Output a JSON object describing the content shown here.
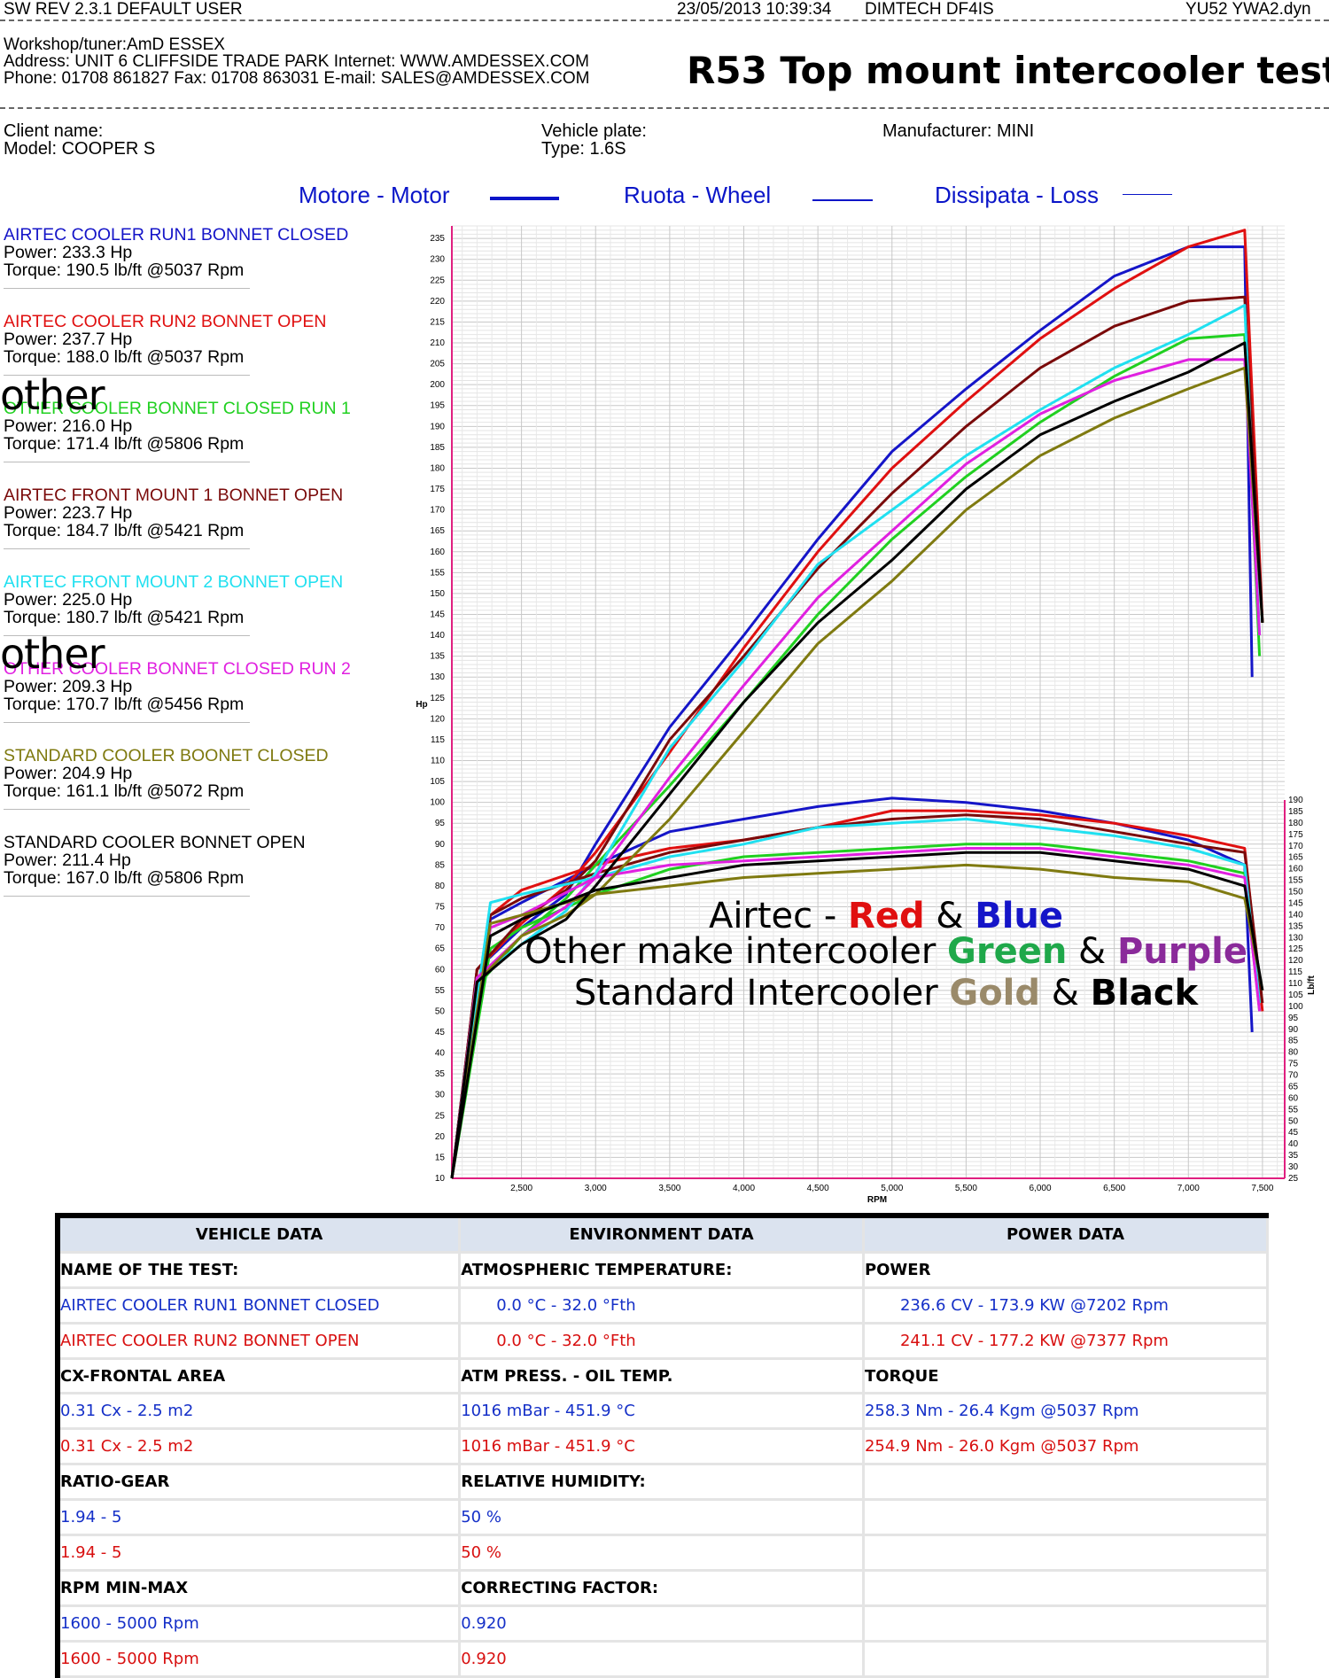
{
  "header": {
    "sw": "SW REV 2.3.1   DEFAULT USER",
    "datetime": "23/05/2013 10:39:34",
    "device": "DIMTECH DF4IS",
    "file": "YU52 YWA2.dyn"
  },
  "workshop": {
    "line1": "Workshop/tuner:AmD ESSEX",
    "line2": "Address: UNIT 6 CLIFFSIDE TRADE PARK Internet: WWW.AMDESSEX.COM",
    "line3": "Phone: 01708 861827 Fax: 01708 863031 E-mail: SALES@AMDESSEX.COM"
  },
  "page_title": "R53 Top mount intercooler test",
  "client": {
    "client_name": "Client name:",
    "model": "Model: COOPER S",
    "vehicle_plate": "Vehicle plate:",
    "type": "Type: 1.6S",
    "manufacturer": "Manufacturer: MINI"
  },
  "legend_types": [
    "Motore - Motor",
    "Ruota - Wheel",
    "Dissipata - Loss"
  ],
  "runs": [
    {
      "name": "AIRTEC COOLER RUN1 BONNET CLOSED",
      "power": "Power: 233.3 Hp",
      "torque": "Torque: 190.5 lb/ft @5037 Rpm",
      "color": "#1515c8"
    },
    {
      "name": "AIRTEC COOLER RUN2 BONNET OPEN",
      "power": "Power: 237.7 Hp",
      "torque": "Torque: 188.0 lb/ft @5037 Rpm",
      "color": "#e01010"
    },
    {
      "name": "OTHER COOLER BONNET CLOSED RUN 1",
      "power": "Power: 216.0 Hp",
      "torque": "Torque: 171.4 lb/ft @5806 Rpm",
      "color": "#20d020"
    },
    {
      "name": "AIRTEC FRONT MOUNT 1 BONNET OPEN",
      "power": "Power: 223.7 Hp",
      "torque": "Torque: 184.7 lb/ft @5421 Rpm",
      "color": "#7a0a0a"
    },
    {
      "name": "AIRTEC FRONT MOUNT 2 BONNET OPEN",
      "power": "Power: 225.0 Hp",
      "torque": "Torque: 180.7 lb/ft @5421 Rpm",
      "color": "#20e0f0"
    },
    {
      "name": "OTHER COOLER BONNET CLOSED RUN 2",
      "power": "Power: 209.3 Hp",
      "torque": "Torque: 170.7 lb/ft @5456 Rpm",
      "color": "#e020e0"
    },
    {
      "name": "STANDARD COOLER BOONET CLOSED",
      "power": "Power: 204.9 Hp",
      "torque": "Torque: 161.1 lb/ft @5072 Rpm",
      "color": "#7f7a10"
    },
    {
      "name": "STANDARD COOLER BONNET OPEN",
      "power": "Power: 211.4 Hp",
      "torque": "Torque: 167.0 lb/ft @5806 Rpm",
      "color": "#000000"
    }
  ],
  "other_overlay": "other",
  "annotation": {
    "l1a": "Airtec - ",
    "l1b": "Red",
    "l1c": " & ",
    "l1d": "Blue",
    "l2a": "Other make intercooler ",
    "l2b": "Green",
    "l2c": " & ",
    "l2d": "Purple",
    "l3a": "Standard Intercooler ",
    "l3b": "Gold",
    "l3c": " & ",
    "l3d": "Black"
  },
  "chart_data": {
    "type": "line",
    "xlabel": "RPM",
    "ylabel": "Hp",
    "y2label": "Lb/ft",
    "xlim": [
      2030,
      7650
    ],
    "ylim": [
      10,
      238
    ],
    "y2lim": [
      25,
      190
    ],
    "xticks": [
      2500,
      3000,
      3500,
      4000,
      4500,
      5000,
      5500,
      6000,
      6500,
      7000,
      7500
    ],
    "xtick_labels": [
      "2,500",
      "3,000",
      "3,500",
      "4,000",
      "4,500",
      "5,000",
      "5,500",
      "6,000",
      "6,500",
      "7,000",
      "7,500"
    ],
    "yticks": [
      10,
      15,
      20,
      25,
      30,
      35,
      40,
      45,
      50,
      55,
      60,
      65,
      70,
      75,
      80,
      85,
      90,
      95,
      100,
      105,
      110,
      115,
      120,
      125,
      130,
      135,
      140,
      145,
      150,
      155,
      160,
      165,
      170,
      175,
      180,
      185,
      190,
      195,
      200,
      205,
      210,
      215,
      220,
      225,
      230,
      235
    ],
    "y2ticks": [
      25,
      30,
      35,
      40,
      45,
      50,
      55,
      60,
      65,
      70,
      75,
      80,
      85,
      90,
      95,
      100,
      105,
      110,
      115,
      120,
      125,
      130,
      135,
      140,
      145,
      150,
      155,
      160,
      165,
      170,
      175,
      180,
      185,
      190
    ],
    "grid": true,
    "series": [
      {
        "name": "AIRTEC COOLER RUN1 BONNET CLOSED",
        "color": "#1515c8",
        "power": [
          [
            2030,
            10
          ],
          [
            2200,
            60
          ],
          [
            2500,
            70
          ],
          [
            2800,
            78
          ],
          [
            3000,
            90
          ],
          [
            3500,
            118
          ],
          [
            4000,
            140
          ],
          [
            4500,
            163
          ],
          [
            5000,
            184
          ],
          [
            5500,
            199
          ],
          [
            6000,
            213
          ],
          [
            6500,
            226
          ],
          [
            7000,
            233
          ],
          [
            7380,
            233
          ],
          [
            7430,
            130
          ]
        ],
        "torque": [
          [
            2030,
            10
          ],
          [
            2290,
            72
          ],
          [
            2500,
            76
          ],
          [
            3000,
            85
          ],
          [
            3500,
            93
          ],
          [
            4000,
            96
          ],
          [
            4500,
            99
          ],
          [
            5000,
            101
          ],
          [
            5500,
            100
          ],
          [
            6000,
            98
          ],
          [
            6500,
            95
          ],
          [
            7000,
            91
          ],
          [
            7380,
            85
          ],
          [
            7430,
            45
          ]
        ]
      },
      {
        "name": "AIRTEC COOLER RUN2 BONNET OPEN",
        "color": "#e01010",
        "power": [
          [
            2030,
            10
          ],
          [
            2200,
            60
          ],
          [
            2500,
            71
          ],
          [
            2800,
            80
          ],
          [
            3000,
            88
          ],
          [
            3500,
            112
          ],
          [
            4000,
            137
          ],
          [
            4500,
            160
          ],
          [
            5000,
            180
          ],
          [
            5500,
            196
          ],
          [
            6000,
            211
          ],
          [
            6500,
            223
          ],
          [
            7000,
            233
          ],
          [
            7380,
            237
          ],
          [
            7500,
            143
          ]
        ],
        "torque": [
          [
            2030,
            10
          ],
          [
            2290,
            73
          ],
          [
            2500,
            79
          ],
          [
            3000,
            85
          ],
          [
            3500,
            89
          ],
          [
            4000,
            91
          ],
          [
            4500,
            94
          ],
          [
            5000,
            98
          ],
          [
            5500,
            98
          ],
          [
            6000,
            97
          ],
          [
            6500,
            95
          ],
          [
            7000,
            92
          ],
          [
            7380,
            89
          ],
          [
            7500,
            50
          ]
        ]
      },
      {
        "name": "OTHER COOLER BONNET CLOSED RUN 1",
        "color": "#20d020",
        "power": [
          [
            2030,
            10
          ],
          [
            2200,
            56
          ],
          [
            2500,
            68
          ],
          [
            2800,
            77
          ],
          [
            3000,
            85
          ],
          [
            3500,
            104
          ],
          [
            4000,
            124
          ],
          [
            4500,
            145
          ],
          [
            5000,
            163
          ],
          [
            5500,
            178
          ],
          [
            6000,
            191
          ],
          [
            6500,
            202
          ],
          [
            7000,
            211
          ],
          [
            7380,
            212
          ],
          [
            7480,
            135
          ]
        ],
        "torque": [
          [
            2030,
            10
          ],
          [
            2290,
            65
          ],
          [
            2500,
            70
          ],
          [
            3000,
            78
          ],
          [
            3500,
            84
          ],
          [
            4000,
            87
          ],
          [
            4500,
            88
          ],
          [
            5000,
            89
          ],
          [
            5500,
            90
          ],
          [
            6000,
            90
          ],
          [
            6500,
            88
          ],
          [
            7000,
            86
          ],
          [
            7380,
            83
          ],
          [
            7480,
            50
          ]
        ]
      },
      {
        "name": "AIRTEC FRONT MOUNT 1 BONNET OPEN",
        "color": "#7a0a0a",
        "power": [
          [
            2030,
            10
          ],
          [
            2200,
            60
          ],
          [
            2500,
            72
          ],
          [
            2800,
            79
          ],
          [
            3000,
            86
          ],
          [
            3500,
            115
          ],
          [
            4000,
            135
          ],
          [
            4500,
            156
          ],
          [
            5000,
            174
          ],
          [
            5500,
            190
          ],
          [
            6000,
            204
          ],
          [
            6500,
            214
          ],
          [
            7000,
            220
          ],
          [
            7380,
            221
          ],
          [
            7500,
            143
          ]
        ],
        "torque": [
          [
            2030,
            10
          ],
          [
            2290,
            73
          ],
          [
            2500,
            77
          ],
          [
            3000,
            83
          ],
          [
            3500,
            88
          ],
          [
            4000,
            91
          ],
          [
            4500,
            94
          ],
          [
            5000,
            96
          ],
          [
            5500,
            97
          ],
          [
            6000,
            96
          ],
          [
            6500,
            93
          ],
          [
            7000,
            90
          ],
          [
            7380,
            88
          ],
          [
            7500,
            52
          ]
        ]
      },
      {
        "name": "AIRTEC FRONT MOUNT 2 BONNET OPEN",
        "color": "#20e0f0",
        "power": [
          [
            2030,
            10
          ],
          [
            2200,
            58
          ],
          [
            2500,
            66
          ],
          [
            2800,
            74
          ],
          [
            3000,
            83
          ],
          [
            3500,
            113
          ],
          [
            4000,
            134
          ],
          [
            4500,
            157
          ],
          [
            5000,
            170
          ],
          [
            5500,
            183
          ],
          [
            6000,
            194
          ],
          [
            6500,
            204
          ],
          [
            7000,
            212
          ],
          [
            7380,
            219
          ],
          [
            7480,
            140
          ]
        ],
        "torque": [
          [
            2030,
            10
          ],
          [
            2290,
            76
          ],
          [
            2500,
            78
          ],
          [
            3000,
            82
          ],
          [
            3500,
            87
          ],
          [
            4000,
            90
          ],
          [
            4500,
            94
          ],
          [
            5000,
            95
          ],
          [
            5500,
            96
          ],
          [
            6000,
            94
          ],
          [
            6500,
            92
          ],
          [
            7000,
            89
          ],
          [
            7380,
            85
          ],
          [
            7480,
            52
          ]
        ]
      },
      {
        "name": "OTHER COOLER BONNET CLOSED RUN 2",
        "color": "#e020e0",
        "power": [
          [
            2030,
            10
          ],
          [
            2200,
            58
          ],
          [
            2500,
            68
          ],
          [
            2800,
            75
          ],
          [
            3000,
            82
          ],
          [
            3500,
            106
          ],
          [
            4000,
            128
          ],
          [
            4500,
            149
          ],
          [
            5000,
            165
          ],
          [
            5500,
            181
          ],
          [
            6000,
            193
          ],
          [
            6500,
            201
          ],
          [
            7000,
            206
          ],
          [
            7380,
            206
          ],
          [
            7480,
            140
          ]
        ],
        "torque": [
          [
            2030,
            10
          ],
          [
            2290,
            70
          ],
          [
            2500,
            73
          ],
          [
            3000,
            82
          ],
          [
            3500,
            85
          ],
          [
            4000,
            86
          ],
          [
            4500,
            87
          ],
          [
            5000,
            88
          ],
          [
            5500,
            89
          ],
          [
            6000,
            89
          ],
          [
            6500,
            87
          ],
          [
            7000,
            85
          ],
          [
            7380,
            82
          ],
          [
            7480,
            50
          ]
        ]
      },
      {
        "name": "STANDARD COOLER BOONET CLOSED",
        "color": "#7f7a10",
        "power": [
          [
            2030,
            10
          ],
          [
            2200,
            57
          ],
          [
            2500,
            68
          ],
          [
            2800,
            73
          ],
          [
            3000,
            78
          ],
          [
            3500,
            96
          ],
          [
            4000,
            117
          ],
          [
            4500,
            138
          ],
          [
            5000,
            153
          ],
          [
            5500,
            170
          ],
          [
            6000,
            183
          ],
          [
            6500,
            192
          ],
          [
            7000,
            199
          ],
          [
            7380,
            204
          ],
          [
            7500,
            143
          ]
        ],
        "torque": [
          [
            2030,
            10
          ],
          [
            2290,
            71
          ],
          [
            2500,
            73
          ],
          [
            3000,
            78
          ],
          [
            3500,
            80
          ],
          [
            4000,
            82
          ],
          [
            4500,
            83
          ],
          [
            5000,
            84
          ],
          [
            5500,
            85
          ],
          [
            6000,
            84
          ],
          [
            6500,
            82
          ],
          [
            7000,
            81
          ],
          [
            7380,
            77
          ],
          [
            7500,
            55
          ]
        ]
      },
      {
        "name": "STANDARD COOLER BONNET OPEN",
        "color": "#000000",
        "power": [
          [
            2030,
            10
          ],
          [
            2200,
            57
          ],
          [
            2500,
            66
          ],
          [
            2800,
            72
          ],
          [
            3000,
            80
          ],
          [
            3500,
            102
          ],
          [
            4000,
            124
          ],
          [
            4500,
            143
          ],
          [
            5000,
            158
          ],
          [
            5500,
            175
          ],
          [
            6000,
            188
          ],
          [
            6500,
            196
          ],
          [
            7000,
            203
          ],
          [
            7380,
            210
          ],
          [
            7500,
            143
          ]
        ],
        "torque": [
          [
            2030,
            10
          ],
          [
            2290,
            68
          ],
          [
            2500,
            72
          ],
          [
            3000,
            79
          ],
          [
            3500,
            82
          ],
          [
            4000,
            85
          ],
          [
            4500,
            86
          ],
          [
            5000,
            87
          ],
          [
            5500,
            88
          ],
          [
            6000,
            88
          ],
          [
            6500,
            86
          ],
          [
            7000,
            84
          ],
          [
            7380,
            80
          ],
          [
            7500,
            55
          ]
        ]
      }
    ]
  },
  "table": {
    "s1": "VEHICLE DATA",
    "s2": "ENVIRONMENT DATA",
    "s3": "POWER DATA",
    "h1": "NAME OF THE TEST:",
    "h2": "ATMOSPHERIC TEMPERATURE:",
    "h3": "POWER",
    "r1c1": "AIRTEC COOLER RUN1 BONNET CLOSED",
    "r1c2": "0.0 °C - 32.0 °Fth",
    "r1c3": "236.6 CV - 173.9 KW  @7202 Rpm",
    "r2c1": "AIRTEC COOLER RUN2 BONNET OPEN",
    "r2c2": "0.0 °C - 32.0 °Fth",
    "r2c3": "241.1 CV - 177.2 KW  @7377 Rpm",
    "h4": "CX-FRONTAL AREA",
    "h5": "ATM PRESS. - OIL TEMP.",
    "h6": "TORQUE",
    "r3c1": "0.31 Cx - 2.5 m2",
    "r3c2": "1016 mBar - 451.9 °C",
    "r3c3": "258.3 Nm - 26.4 Kgm  @5037 Rpm",
    "r4c1": "0.31 Cx - 2.5 m2",
    "r4c2": "1016 mBar - 451.9 °C",
    "r4c3": "254.9 Nm - 26.0 Kgm  @5037 Rpm",
    "h7": "RATIO-GEAR",
    "h8": "RELATIVE HUMIDITY:",
    "r5c1": "1.94 - 5",
    "r5c2": "50 %",
    "r6c1": "1.94 - 5",
    "r6c2": "50 %",
    "h9": "RPM MIN-MAX",
    "h10": "CORRECTING FACTOR:",
    "r7c1": "1600 - 5000 Rpm",
    "r7c2": "0.920",
    "r8c1": "1600 - 5000 Rpm",
    "r8c2": "0.920"
  }
}
